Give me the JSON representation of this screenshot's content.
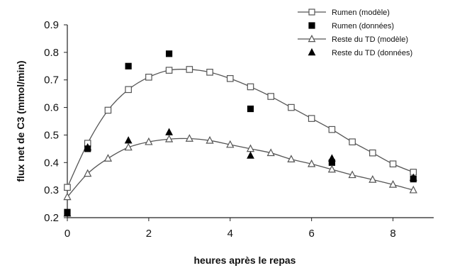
{
  "chart_data": {
    "type": "scatter",
    "title": "",
    "xlabel": "heures après le repas",
    "ylabel": "flux net de C3 (mmol/min)",
    "xlim": [
      0,
      9
    ],
    "ylim": [
      0.2,
      0.9
    ],
    "xticks": [
      0,
      2,
      4,
      6,
      8
    ],
    "yticks": [
      0.2,
      0.3,
      0.4,
      0.5,
      0.6,
      0.7,
      0.8,
      0.9
    ],
    "grid": false,
    "legend_position": "top-right",
    "series": [
      {
        "name": "Rumen (modèle)",
        "style": "line-open-square",
        "color": "#555555",
        "x": [
          0,
          0.5,
          1,
          1.5,
          2,
          2.5,
          3,
          3.5,
          4,
          4.5,
          5,
          5.5,
          6,
          6.5,
          7,
          7.5,
          8,
          8.5
        ],
        "y": [
          0.31,
          0.47,
          0.59,
          0.665,
          0.71,
          0.735,
          0.738,
          0.728,
          0.705,
          0.675,
          0.64,
          0.6,
          0.56,
          0.52,
          0.475,
          0.435,
          0.395,
          0.365
        ]
      },
      {
        "name": "Rumen (données)",
        "style": "filled-square",
        "color": "#000000",
        "x": [
          0,
          0.5,
          1.5,
          2.5,
          4.5,
          6.5,
          8.5
        ],
        "y": [
          0.22,
          0.45,
          0.75,
          0.795,
          0.595,
          0.4,
          0.34
        ]
      },
      {
        "name": "Reste du TD (modèle)",
        "style": "line-open-triangle",
        "color": "#555555",
        "x": [
          0,
          0.5,
          1,
          1.5,
          2,
          2.5,
          3,
          3.5,
          4,
          4.5,
          5,
          5.5,
          6,
          6.5,
          7,
          7.5,
          8,
          8.5
        ],
        "y": [
          0.275,
          0.36,
          0.415,
          0.455,
          0.475,
          0.485,
          0.487,
          0.48,
          0.465,
          0.45,
          0.435,
          0.412,
          0.395,
          0.375,
          0.355,
          0.338,
          0.32,
          0.3
        ]
      },
      {
        "name": "Reste du TD (données)",
        "style": "filled-triangle",
        "color": "#000000",
        "x": [
          0,
          0.5,
          1.5,
          2.5,
          4.5,
          6.5,
          8.5
        ],
        "y": [
          0.215,
          0.455,
          0.48,
          0.51,
          0.425,
          0.415,
          0.345
        ]
      }
    ]
  }
}
